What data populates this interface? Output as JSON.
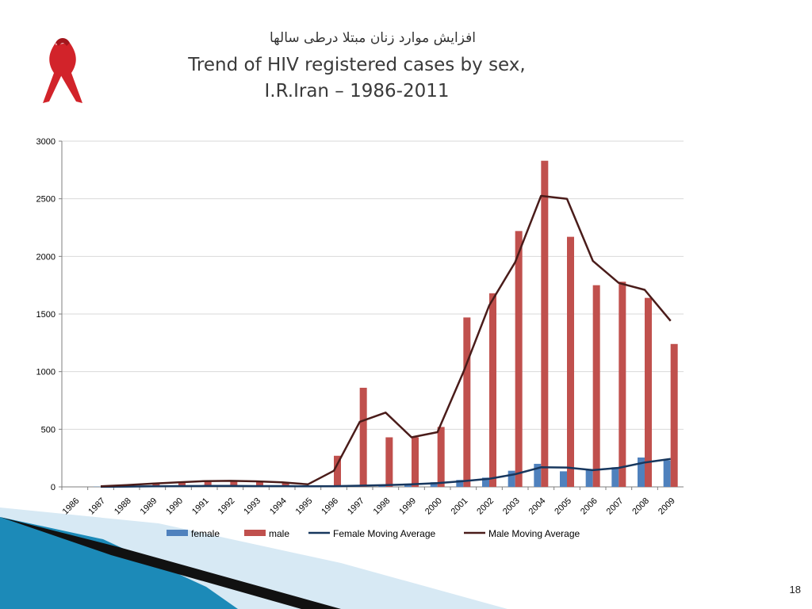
{
  "slide": {
    "title_persian": "افزایش موارد زنان مبتلا درطی سالها",
    "title_line1": "Trend of HIV  registered cases  by sex,",
    "title_line2": "I.R.Iran – 1986-2011",
    "page_number": "18",
    "ribbon_icon": "red-awareness-ribbon",
    "colors": {
      "ribbon": "#d2232a",
      "decor_blue": "#1c8ab8",
      "decor_light": "#d7e9f4"
    }
  },
  "chart_data": {
    "type": "bar",
    "categories": [
      "1986",
      "1987",
      "1988",
      "1989",
      "1990",
      "1991",
      "1992",
      "1993",
      "1994",
      "1995",
      "1996",
      "1997",
      "1998",
      "1999",
      "2000",
      "2001",
      "2002",
      "2003",
      "2004",
      "2005",
      "2006",
      "2007",
      "2008",
      "2009"
    ],
    "series": [
      {
        "name": "female",
        "type": "bar",
        "color": "#4f81bd",
        "values": [
          0,
          2,
          4,
          6,
          8,
          9,
          7,
          8,
          6,
          5,
          7,
          12,
          18,
          25,
          40,
          60,
          80,
          140,
          200,
          135,
          155,
          170,
          255,
          230
        ]
      },
      {
        "name": "male",
        "type": "bar",
        "color": "#c0504d",
        "values": [
          0,
          10,
          20,
          35,
          45,
          55,
          50,
          45,
          35,
          10,
          270,
          860,
          430,
          430,
          520,
          1470,
          1680,
          2220,
          2830,
          2170,
          1750,
          1780,
          1640,
          1240
        ]
      },
      {
        "name": "Female Moving Average",
        "type": "line",
        "color": "#17375e",
        "values": [
          null,
          1,
          3,
          5,
          7,
          8,
          8,
          7,
          7,
          5,
          6,
          10,
          15,
          22,
          32,
          50,
          70,
          110,
          170,
          168,
          145,
          165,
          212,
          243
        ]
      },
      {
        "name": "Male Moving Average",
        "type": "line",
        "color": "#4a1c1a",
        "values": [
          null,
          5,
          15,
          28,
          40,
          50,
          52,
          48,
          40,
          22,
          140,
          565,
          645,
          430,
          475,
          995,
          1575,
          1950,
          2525,
          2500,
          1960,
          1770,
          1710,
          1440
        ]
      }
    ],
    "ylim": [
      0,
      3000
    ],
    "yticks": [
      0,
      500,
      1000,
      1500,
      2000,
      2500,
      3000
    ],
    "grid": true,
    "legend_position": "bottom"
  }
}
